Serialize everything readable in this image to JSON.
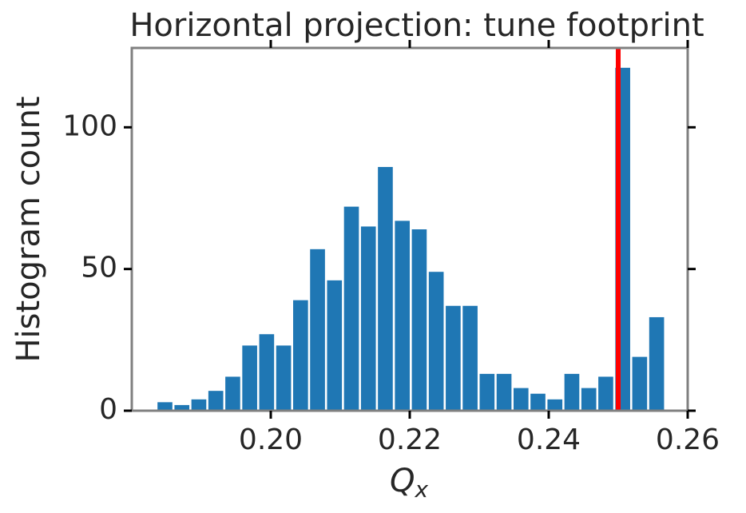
{
  "chart_data": {
    "type": "histogram",
    "title": "Horizontal projection: tune footprint",
    "xlabel": {
      "text": "Q",
      "subscript": "x"
    },
    "ylabel": "Histogram count",
    "bins": [
      0.1837,
      0.18614,
      0.18858,
      0.19102,
      0.19346,
      0.1959,
      0.19834,
      0.20078,
      0.20322,
      0.20566,
      0.2081,
      0.21054,
      0.21298,
      0.21542,
      0.21786,
      0.2203,
      0.22274,
      0.22518,
      0.22762,
      0.23006,
      0.2325,
      0.23494,
      0.23738,
      0.23982,
      0.24226,
      0.2447,
      0.24714,
      0.24958,
      0.25202,
      0.25446,
      0.2569
    ],
    "values": [
      3,
      2,
      4,
      7,
      12,
      23,
      27,
      23,
      39,
      57,
      46,
      72,
      65,
      86,
      67,
      64,
      49,
      37,
      37,
      13,
      13,
      8,
      6,
      4,
      13,
      8,
      12,
      121,
      19,
      33
    ],
    "color": "#1f77b4",
    "vline": {
      "x": 0.25,
      "color": "#ff0000"
    },
    "xlim": [
      0.18,
      0.26
    ],
    "ylim": [
      0,
      128
    ],
    "xticks": [
      {
        "value": 0.2,
        "label": "0.20"
      },
      {
        "value": 0.22,
        "label": "0.22"
      },
      {
        "value": 0.24,
        "label": "0.24"
      },
      {
        "value": 0.26,
        "label": "0.26"
      }
    ],
    "yticks": [
      0,
      50,
      100
    ],
    "grid": false
  }
}
